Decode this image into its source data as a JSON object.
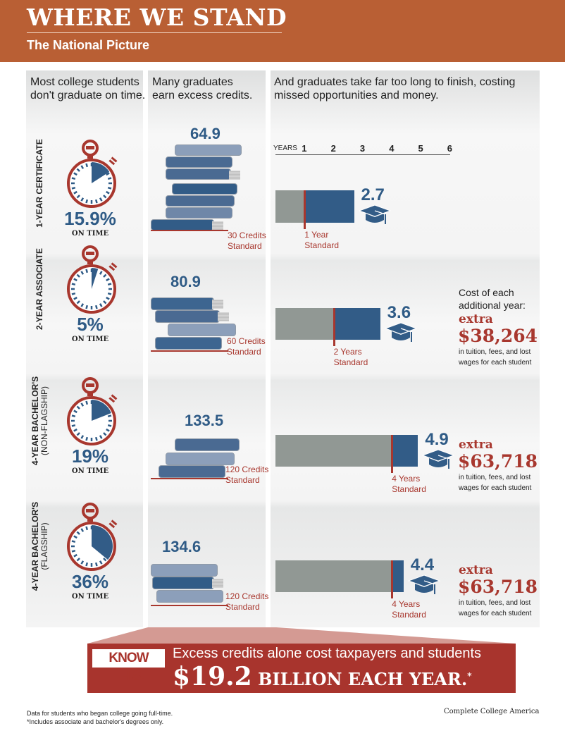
{
  "header": {
    "title": "WHERE WE STAND",
    "subtitle": "The National Picture"
  },
  "columns": {
    "col1": "Most college students don't graduate on time.",
    "col2": "Many graduates earn excess credits.",
    "col3": "And graduates take far too long to finish, costing missed opportunities and money."
  },
  "axis": {
    "label": "YEARS",
    "ticks": [
      "1",
      "2",
      "3",
      "4",
      "5",
      "6"
    ]
  },
  "rows": [
    {
      "label": "1-YEAR CERTIFICATE",
      "sublabel": "",
      "on_time_pct": 15.9,
      "on_time_text": "15.9%",
      "on_time_label": "ON TIME",
      "credits": "64.9",
      "credits_standard": "30 Credits",
      "credits_standard2": "Standard",
      "years": "2.7",
      "std_years": "1 Year",
      "std_years2": "Standard"
    },
    {
      "label": "2-YEAR ASSOCIATE",
      "sublabel": "",
      "on_time_pct": 5,
      "on_time_text": "5%",
      "on_time_label": "ON TIME",
      "credits": "80.9",
      "credits_standard": "60 Credits",
      "credits_standard2": "Standard",
      "years": "3.6",
      "std_years": "2 Years",
      "std_years2": "Standard",
      "cost_intro": "Cost of each additional year:",
      "cost_extra": "extra",
      "cost_value": "$38,264",
      "cost_note": "in tuition, fees, and lost wages for each student"
    },
    {
      "label": "4-YEAR BACHELOR'S",
      "sublabel": "(NON-FLAGSHIP)",
      "on_time_pct": 19,
      "on_time_text": "19%",
      "on_time_label": "ON TIME",
      "credits": "133.5",
      "credits_standard": "120 Credits",
      "credits_standard2": "Standard",
      "years": "4.9",
      "std_years": "4 Years",
      "std_years2": "Standard",
      "cost_extra": "extra",
      "cost_value": "$63,718",
      "cost_note": "in tuition, fees, and lost wages for each student"
    },
    {
      "label": "4-YEAR BACHELOR'S",
      "sublabel": "(FLAGSHIP)",
      "on_time_pct": 36,
      "on_time_text": "36%",
      "on_time_label": "ON TIME",
      "credits": "134.6",
      "credits_standard": "120 Credits",
      "credits_standard2": "Standard",
      "years": "4.4",
      "std_years": "4 Years",
      "std_years2": "Standard",
      "cost_extra": "extra",
      "cost_value": "$63,718",
      "cost_note": "in tuition, fees, and lost wages for each student"
    }
  ],
  "chart_data": {
    "type": "bar",
    "orientation": "horizontal",
    "xlabel": "YEARS",
    "xlim": [
      0,
      6
    ],
    "x_ticks": [
      1,
      2,
      3,
      4,
      5,
      6
    ],
    "categories": [
      "1-YEAR CERTIFICATE",
      "2-YEAR ASSOCIATE",
      "4-YEAR BACHELOR'S (NON-FLAGSHIP)",
      "4-YEAR BACHELOR'S (FLAGSHIP)"
    ],
    "series": [
      {
        "values": [
          1,
          2,
          4,
          4
        ],
        "color": "#919894"
      },
      {
        "values": [
          2.7,
          3.6,
          4.9,
          4.4
        ],
        "color": "#325c87"
      }
    ],
    "on_time_percent": [
      15.9,
      5,
      19,
      36
    ],
    "credits_earned": [
      64.9,
      80.9,
      133.5,
      134.6
    ],
    "credits_standard": [
      30,
      60,
      120,
      120
    ],
    "grid": false
  },
  "know_this": {
    "tag": "KNOW THIS:",
    "text": "Excess credits alone cost taxpayers and students",
    "amount": "$19.2",
    "amount_rest": "BILLION EACH YEAR.",
    "asterisk": "*"
  },
  "footer": {
    "note1": "Data for students who began college going full-time.",
    "note2": "*Includes associate and bachelor's degrees only.",
    "source": "Complete College America"
  },
  "colors": {
    "brand": "#b95f34",
    "red": "#a8372e",
    "blue": "#325c87",
    "grey": "#919894"
  }
}
